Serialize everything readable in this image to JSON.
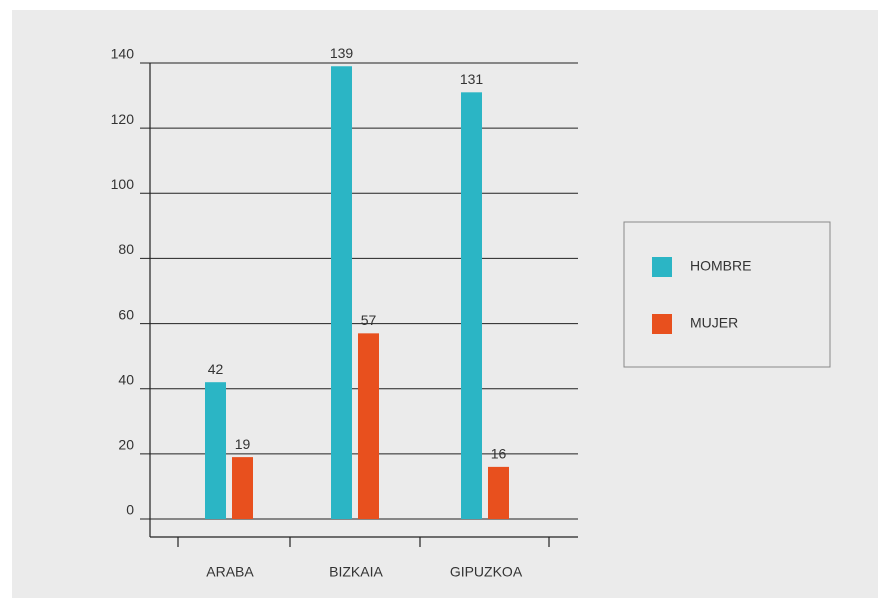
{
  "chart_data": {
    "type": "bar",
    "categories": [
      "ARABA",
      "BIZKAIA",
      "GIPUZKOA"
    ],
    "series": [
      {
        "name": "HOMBRE",
        "color": "#2bb5c5",
        "values": [
          42,
          139,
          131
        ]
      },
      {
        "name": "MUJER",
        "color": "#e8501e",
        "values": [
          19,
          57,
          16
        ]
      }
    ],
    "ylim": [
      0,
      140
    ],
    "yticks": [
      0,
      20,
      40,
      60,
      80,
      100,
      120,
      140
    ],
    "grid": true,
    "legend": "right"
  }
}
